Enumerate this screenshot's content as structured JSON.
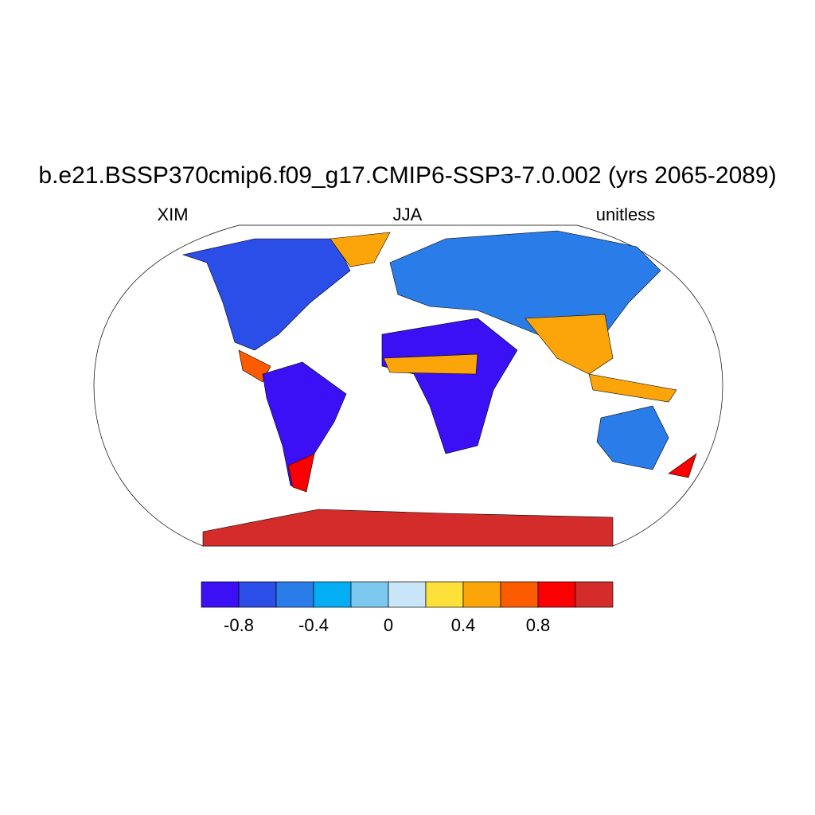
{
  "title": "b.e21.BSSP370cmip6.f09_g17.CMIP6-SSP3-7.0.002 (yrs 2065-2089)",
  "left_string": "XIM",
  "center_string": "JJA",
  "right_string": "unitless",
  "colorbar": {
    "levels": [
      -0.8,
      -0.6,
      -0.4,
      -0.2,
      0,
      0.2,
      0.4,
      0.6,
      0.8,
      1.0
    ],
    "colors": [
      "#3b10f5",
      "#2b4de8",
      "#2a7de8",
      "#04aef5",
      "#7cc8ee",
      "#c8e6f8",
      "#fde03a",
      "#fca50a",
      "#fd5b00",
      "#fb0000",
      "#d42b2b"
    ],
    "ticks": [
      -0.8,
      -0.4,
      0,
      0.4,
      0.8
    ]
  }
}
